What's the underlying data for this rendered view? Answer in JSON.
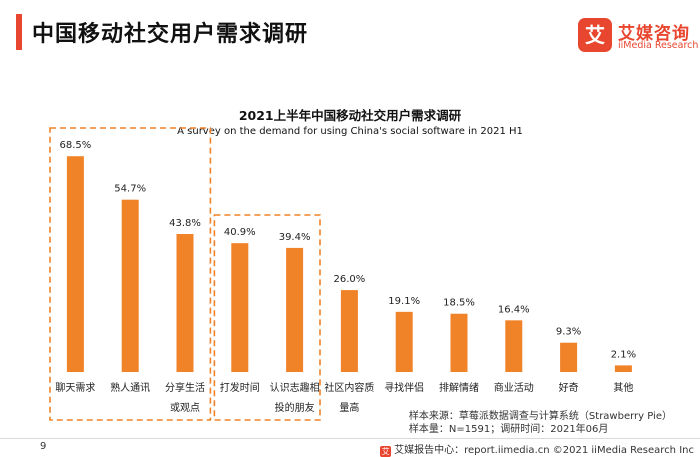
{
  "header": {
    "title": "中国移动社交用户需求调研"
  },
  "logo": {
    "mark": "艾",
    "name_cn": "艾媒咨询",
    "name_en": "iiMedia Research"
  },
  "colors": {
    "accent": "#E8462F",
    "bar": "#F08228",
    "highlight_box": "#F08228",
    "logo_red": "#E8462F"
  },
  "chart_data": {
    "type": "bar",
    "title": "2021上半年中国移动社交用户需求调研",
    "subtitle": "A survey on the demand for using China's  social software in 2021 H1",
    "categories": [
      [
        "聊天需求"
      ],
      [
        "熟人通讯"
      ],
      [
        "分享生活",
        "或观点"
      ],
      [
        "打发时间"
      ],
      [
        "认识志趣相",
        "投的朋友"
      ],
      [
        "社区内容质",
        "量高"
      ],
      [
        "寻找伴侣"
      ],
      [
        "排解情绪"
      ],
      [
        "商业活动"
      ],
      [
        "好奇"
      ],
      [
        "其他"
      ]
    ],
    "values": [
      68.5,
      54.7,
      43.8,
      40.9,
      39.4,
      26.0,
      19.1,
      18.5,
      16.4,
      9.3,
      2.1
    ],
    "value_labels": [
      "68.5%",
      "54.7%",
      "43.8%",
      "40.9%",
      "39.4%",
      "26.0%",
      "19.1%",
      "18.5%",
      "16.4%",
      "9.3%",
      "2.1%"
    ],
    "ylim": [
      0,
      80
    ],
    "grid": false,
    "highlight_groups": [
      [
        0,
        2
      ],
      [
        3,
        4
      ]
    ]
  },
  "source": {
    "line1": "样本来源：草莓派数据调查与计算系统（Strawberry Pie）",
    "line2": "样本量：N=1591；调研时间：2021年06月"
  },
  "footer": {
    "page": "9",
    "icon": "艾",
    "text": "艾媒报告中心：report.iimedia.cn  ©2021  iiMedia Research  Inc"
  }
}
